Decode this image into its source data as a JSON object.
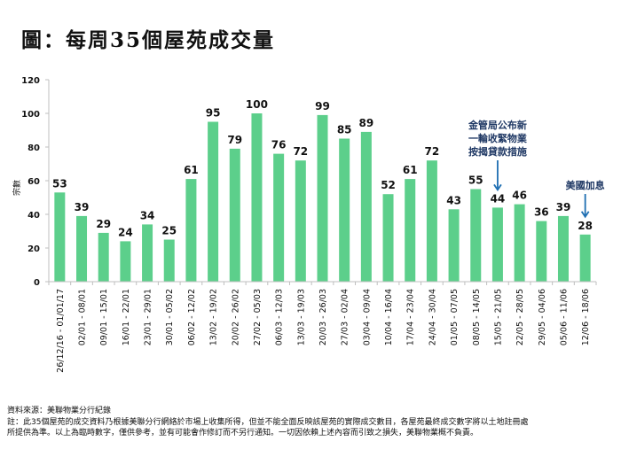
{
  "title": "圖：每周35個屋苑成交量",
  "chart_data": {
    "type": "bar",
    "title": "圖：每周35個屋苑成交量",
    "xlabel": "",
    "ylabel": "宗數",
    "ylim": [
      0,
      120
    ],
    "yticks": [
      0,
      20,
      40,
      60,
      80,
      100,
      120
    ],
    "grid": false,
    "bar_color": "#5ccf8b",
    "categories": [
      "26/12/16 - 01/01/17",
      "02/01 - 08/01",
      "09/01 - 15/01",
      "16/01 - 22/01",
      "23/01 - 29/01",
      "30/01 - 05/02",
      "06/02 - 12/02",
      "13/02 - 19/02",
      "20/02 - 26/02",
      "27/02 - 05/03",
      "06/03 - 12/03",
      "13/03 - 19/03",
      "20/03 - 26/03",
      "27/03 - 02/04",
      "03/04 - 09/04",
      "10/04 - 16/04",
      "17/04 - 23/04",
      "24/04 - 30/04",
      "01/05 - 07/05",
      "08/05 - 14/05",
      "15/05 - 21/05",
      "22/05 - 28/05",
      "29/05 - 04/06",
      "05/06 - 11/06",
      "12/06 - 18/06"
    ],
    "values": [
      53,
      39,
      29,
      24,
      34,
      25,
      61,
      95,
      79,
      100,
      76,
      72,
      99,
      85,
      89,
      52,
      61,
      72,
      43,
      55,
      44,
      46,
      36,
      39,
      28
    ],
    "annotations": [
      {
        "category_index": 20,
        "lines": [
          "金管局公布新",
          "一輪收緊物業",
          "按揭貸款措施"
        ],
        "color": "#1f6fb2"
      },
      {
        "category_index": 24,
        "lines": [
          "美國加息"
        ],
        "color": "#1f6fb2"
      }
    ]
  },
  "footer": {
    "source": "資料來源：美聯物業分行紀錄",
    "note_line1": "註：此35個屋苑的成交資料乃根據美聯分行網絡於市場上收集所得，但並不能全面反映該屋苑的實際成交數目，各屋苑最終成交數字將以土地註冊處",
    "note_line2": "所提供為準。以上為臨時數字，僅供參考，並有可能會作修訂而不另行通知。一切因依賴上述內容而引致之損失，美聯物業概不負責。"
  }
}
